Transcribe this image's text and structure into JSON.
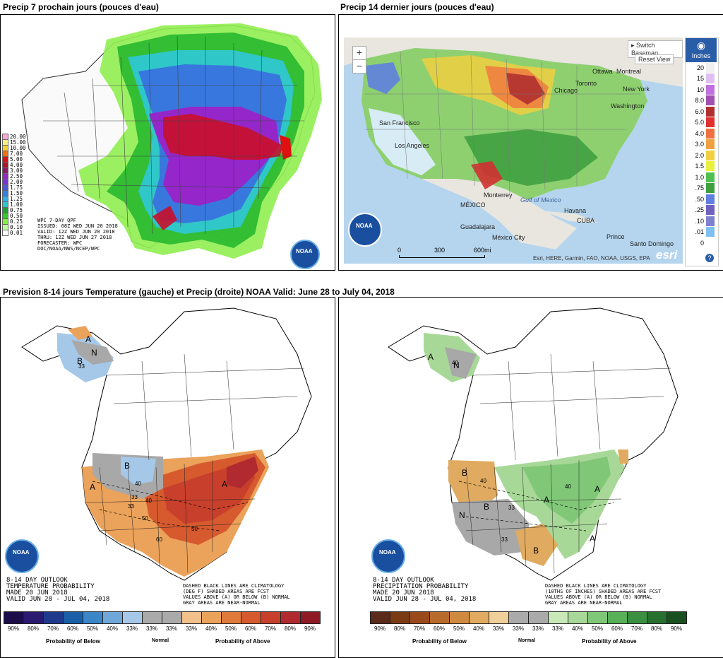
{
  "titles": {
    "top_left": "Precip 7 prochain jours (pouces d'eau)",
    "top_right": "Precip 14 dernier jours (pouces d'eau)",
    "bottom": "Prevision 8-14 jours Temperature (gauche) et Precip (droite) NOAA Valid: June 28 to July 04, 2018"
  },
  "wpc": {
    "legend": [
      {
        "label": "20.00",
        "color": "#f7a6d6"
      },
      {
        "label": "15.00",
        "color": "#f4f080"
      },
      {
        "label": "10.00",
        "color": "#f6d22e"
      },
      {
        "label": "7.00",
        "color": "#f26f10"
      },
      {
        "label": "5.00",
        "color": "#e01010"
      },
      {
        "label": "4.00",
        "color": "#b5102a"
      },
      {
        "label": "3.00",
        "color": "#8e1a6e"
      },
      {
        "label": "2.50",
        "color": "#9a22c8"
      },
      {
        "label": "2.00",
        "color": "#7b2fe0"
      },
      {
        "label": "1.75",
        "color": "#4c58d8"
      },
      {
        "label": "1.50",
        "color": "#3080e8"
      },
      {
        "label": "1.25",
        "color": "#2fb0f0"
      },
      {
        "label": "1.00",
        "color": "#26c8c8"
      },
      {
        "label": "0.75",
        "color": "#20a030"
      },
      {
        "label": "0.50",
        "color": "#30d020"
      },
      {
        "label": "0.25",
        "color": "#80f040"
      },
      {
        "label": "0.10",
        "color": "#c0f8a0"
      },
      {
        "label": "0.01",
        "color": "#ffffff"
      }
    ],
    "info": [
      "WPC 7-DAY QPF",
      "ISSUED: 08Z WED JUN 20 2018",
      "VALID: 12Z WED JUN 20 2018",
      "THRU: 12Z WED JUN 27 2018",
      "FORECASTER: WPC",
      "DOC/NOAA/NWS/NCEP/WPC"
    ]
  },
  "esri": {
    "zoom_in": "+",
    "zoom_out": "−",
    "switch_basemap": "Switch Basemap",
    "reset_view": "Reset View",
    "units_label": "Inches",
    "legend": [
      {
        "label": "20",
        "color": "#f0f0f0"
      },
      {
        "label": "15",
        "color": "#e0c0f0"
      },
      {
        "label": "10",
        "color": "#c070e0"
      },
      {
        "label": "8.0",
        "color": "#a050b0"
      },
      {
        "label": "6.0",
        "color": "#b03030"
      },
      {
        "label": "5.0",
        "color": "#e03030"
      },
      {
        "label": "4.0",
        "color": "#f07040"
      },
      {
        "label": "3.0",
        "color": "#f0a040"
      },
      {
        "label": "2.0",
        "color": "#f0d040"
      },
      {
        "label": "1.5",
        "color": "#e8f040"
      },
      {
        "label": "1.0",
        "color": "#50c050"
      },
      {
        "label": ".75",
        "color": "#40a040"
      },
      {
        "label": ".50",
        "color": "#6080e0"
      },
      {
        "label": ".25",
        "color": "#7060c0"
      },
      {
        "label": ".10",
        "color": "#8080d0"
      },
      {
        "label": ".01",
        "color": "#80c0f0"
      },
      {
        "label": "0",
        "color": "#ffffff"
      }
    ],
    "places": [
      "San Francisco",
      "Los Angeles",
      "Ottawa",
      "Montreal",
      "Toronto",
      "Chicago",
      "New York",
      "Washington",
      "Gulf of Mexico",
      "MÉXICO",
      "Monterrey",
      "Guadalajara",
      "México City",
      "Havana",
      "CUBA",
      "Prince",
      "Santo Domingo"
    ],
    "scale": [
      "0",
      "300",
      "600mi"
    ],
    "attribution": "Esri, HERE, Garmin, FAO, NOAA, USGS, EPA",
    "esri_logo": "esri"
  },
  "temp_outlook": {
    "info": [
      "8-14 DAY OUTLOOK",
      "TEMPERATURE PROBABILITY",
      "MADE   20 JUN 2018",
      "VALID   JUN 28 - JUL 04, 2018"
    ],
    "note": [
      "DASHED BLACK LINES ARE CLIMATOLOGY",
      "(DEG F) SHADED AREAS ARE FCST",
      "VALUES ABOVE (A) OR BELOW (B) NORMAL",
      "GRAY AREAS ARE NEAR-NORMAL"
    ],
    "below_colors": [
      "#1a0d4a",
      "#2a1a70",
      "#1f3a8c",
      "#1a5fa8",
      "#3a86c8",
      "#6fa7d8",
      "#a5c8e8"
    ],
    "below_labels": [
      "90%",
      "80%",
      "70%",
      "60%",
      "50%",
      "40%",
      "33%"
    ],
    "normal_labels": [
      "33%",
      "33%"
    ],
    "above_colors": [
      "#f2c08a",
      "#eba25a",
      "#e07a3a",
      "#d65a2e",
      "#c8402c",
      "#b02a30",
      "#8e1a26"
    ],
    "above_labels": [
      "40%",
      "50%",
      "60%",
      "70%",
      "80%",
      "90%"
    ],
    "above_first_label": "33%",
    "prob_below": "Probability of Below",
    "normal": "Normal",
    "prob_above": "Probability of Above",
    "labels": [
      "A",
      "N",
      "B",
      "B",
      "A",
      "A",
      "40",
      "33",
      "50",
      "60",
      "50",
      "40",
      "33",
      "33"
    ]
  },
  "precip_outlook": {
    "info": [
      "8-14 DAY OUTLOOK",
      "PRECIPITATION PROBABILITY",
      "MADE   20 JUN 2018",
      "VALID   JUN 28 - JUL 04, 2018"
    ],
    "note": [
      "DASHED BLACK LINES ARE CLIMATOLOGY",
      "(10THS OF INCHES) SHADED AREAS ARE FCST",
      "VALUES ABOVE (A) OR BELOW (B) NORMAL",
      "GRAY AREAS ARE NEAR-NORMAL"
    ],
    "below_colors": [
      "#5a2a1a",
      "#7a3a14",
      "#9a4a1a",
      "#b86a2a",
      "#d08a40",
      "#e0aa60",
      "#f0d09a"
    ],
    "below_labels": [
      "90%",
      "80%",
      "70%",
      "60%",
      "50%",
      "40%",
      "33%"
    ],
    "normal_labels": [
      "33%",
      "33%"
    ],
    "above_colors": [
      "#c8e8b8",
      "#a8d898",
      "#80c878",
      "#58b058",
      "#3a9040",
      "#287030",
      "#1a5020"
    ],
    "above_labels": [
      "40%",
      "50%",
      "60%",
      "70%",
      "80%",
      "90%"
    ],
    "above_first_label": "33%",
    "prob_below": "Probability of Below",
    "normal": "Normal",
    "prob_above": "Probability of Above",
    "labels": [
      "A",
      "N",
      "B",
      "B",
      "N",
      "B",
      "A",
      "A",
      "A",
      "40",
      "40",
      "33",
      "33",
      "40"
    ]
  },
  "noaa_logo": "NOAA"
}
